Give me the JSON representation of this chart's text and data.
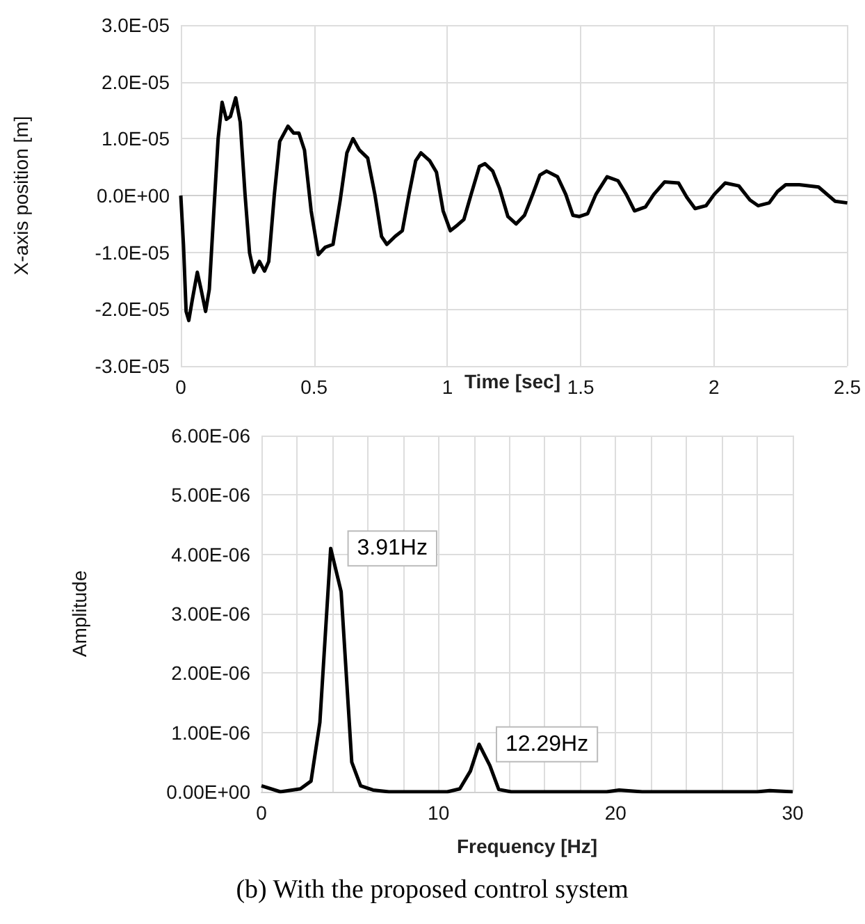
{
  "chart_data": [
    {
      "type": "line",
      "xlabel": "Time [sec]",
      "ylabel": "X-axis position [m]",
      "color": "#000000",
      "grid": true,
      "x": [
        0,
        0.01,
        0.02,
        0.03,
        0.043,
        0.062,
        0.076,
        0.093,
        0.107,
        0.124,
        0.14,
        0.155,
        0.171,
        0.186,
        0.206,
        0.223,
        0.241,
        0.258,
        0.274,
        0.295,
        0.314,
        0.33,
        0.351,
        0.371,
        0.402,
        0.423,
        0.443,
        0.464,
        0.489,
        0.516,
        0.542,
        0.571,
        0.598,
        0.623,
        0.646,
        0.67,
        0.701,
        0.728,
        0.753,
        0.773,
        0.804,
        0.831,
        0.856,
        0.881,
        0.901,
        0.934,
        0.959,
        0.984,
        1.011,
        1.038,
        1.062,
        1.089,
        1.12,
        1.141,
        1.17,
        1.196,
        1.227,
        1.258,
        1.289,
        1.32,
        1.347,
        1.372,
        1.413,
        1.444,
        1.471,
        1.495,
        1.526,
        1.557,
        1.599,
        1.64,
        1.671,
        1.702,
        1.743,
        1.774,
        1.815,
        1.867,
        1.898,
        1.929,
        1.97,
        2.001,
        2.042,
        2.093,
        2.135,
        2.166,
        2.207,
        2.238,
        2.269,
        2.32,
        2.392,
        2.454,
        2.5
      ],
      "values": [
        0,
        -8.6e-06,
        -2.04e-05,
        -2.2e-05,
        -1.84e-05,
        -1.35e-05,
        -1.65e-05,
        -2.04e-05,
        -1.65e-05,
        -2.7e-06,
        1e-05,
        1.64e-05,
        1.34e-05,
        1.39e-05,
        1.72e-05,
        1.29e-05,
        2e-07,
        -1.01e-05,
        -1.35e-05,
        -1.16e-05,
        -1.33e-05,
        -1.16e-05,
        2e-07,
        9.5e-06,
        1.22e-05,
        1.1e-05,
        1.1e-05,
        8e-06,
        -2.7e-06,
        -1.04e-05,
        -9.1e-06,
        -8.6e-06,
        -8e-07,
        7.5e-06,
        1e-05,
        8e-06,
        6.6e-06,
        2e-07,
        -7.2e-06,
        -8.6e-06,
        -7.2e-06,
        -6.2e-06,
        2e-07,
        6.1e-06,
        7.5e-06,
        6.1e-06,
        4.1e-06,
        -2.7e-06,
        -6.2e-06,
        -5.2e-06,
        -4.2e-06,
        2e-07,
        5.1e-06,
        5.6e-06,
        4.3e-06,
        1.2e-06,
        -3.7e-06,
        -5e-06,
        -3.5e-06,
        2e-07,
        3.6e-06,
        4.3e-06,
        3.3e-06,
        2e-07,
        -3.5e-06,
        -3.7e-06,
        -3.2e-06,
        2e-07,
        3.3e-06,
        2.6e-06,
        2e-07,
        -2.7e-06,
        -2e-06,
        2e-07,
        2.4e-06,
        2.2e-06,
        -3e-07,
        -2.3e-06,
        -1.8e-06,
        2e-07,
        2.2e-06,
        1.7e-06,
        -8e-07,
        -1.8e-06,
        -1.3e-06,
        7e-07,
        1.9e-06,
        1.9e-06,
        1.5e-06,
        -1e-06,
        -1.3e-06
      ],
      "xlim": [
        0,
        2.5
      ],
      "xticks": [
        0,
        0.5,
        1,
        1.5,
        2,
        2.5
      ],
      "ylim": [
        -3e-05,
        3e-05
      ],
      "yticks": [
        {
          "value": -3e-05,
          "label": "-3.0E-05"
        },
        {
          "value": -2e-05,
          "label": "-2.0E-05"
        },
        {
          "value": -1e-05,
          "label": "-1.0E-05"
        },
        {
          "value": 0,
          "label": "0.0E+00"
        },
        {
          "value": 1e-05,
          "label": "1.0E-05"
        },
        {
          "value": 2e-05,
          "label": "2.0E-05"
        },
        {
          "value": 3e-05,
          "label": "3.0E-05"
        }
      ]
    },
    {
      "type": "line",
      "xlabel": "Frequency [Hz]",
      "ylabel": "Amplitude",
      "color": "#000000",
      "grid": true,
      "x": [
        0,
        1.07,
        2.2,
        2.8,
        3.3,
        3.91,
        4.5,
        5.1,
        5.6,
        6.3,
        7.2,
        10.5,
        11.2,
        11.8,
        12.29,
        12.9,
        13.4,
        14.1,
        19.5,
        20.2,
        21.5,
        28,
        28.7,
        30
      ],
      "values": [
        1e-07,
        0,
        5e-08,
        1.8e-07,
        1.17e-06,
        4.1e-06,
        3.37e-06,
        5e-07,
        1e-07,
        3e-08,
        0,
        0,
        5e-08,
        3.5e-07,
        8e-07,
        4.4e-07,
        4e-08,
        0,
        0,
        3e-08,
        0,
        0,
        2e-08,
        0
      ],
      "xlim": [
        0,
        30
      ],
      "xticks": [
        0,
        {
          "value": 2,
          "label": null
        },
        {
          "value": 4,
          "label": null
        },
        {
          "value": 6,
          "label": null
        },
        {
          "value": 8,
          "label": null
        },
        10,
        {
          "value": 12,
          "label": null
        },
        {
          "value": 14,
          "label": null
        },
        {
          "value": 16,
          "label": null
        },
        {
          "value": 18,
          "label": null
        },
        20,
        {
          "value": 22,
          "label": null
        },
        {
          "value": 24,
          "label": null
        },
        {
          "value": 26,
          "label": null
        },
        {
          "value": 28,
          "label": null
        },
        30
      ],
      "ylim": [
        0,
        6e-06
      ],
      "yticks": [
        {
          "value": 0,
          "label": "0.00E+00"
        },
        {
          "value": 1e-06,
          "label": "1.00E-06"
        },
        {
          "value": 2e-06,
          "label": "2.00E-06"
        },
        {
          "value": 3e-06,
          "label": "3.00E-06"
        },
        {
          "value": 4e-06,
          "label": "4.00E-06"
        },
        {
          "value": 5e-06,
          "label": "5.00E-06"
        },
        {
          "value": 6e-06,
          "label": "6.00E-06"
        }
      ],
      "annotations": [
        {
          "text": "3.91Hz",
          "x": 3.91,
          "y": 4.1e-06
        },
        {
          "text": "12.29Hz",
          "x": 12.29,
          "y": 8e-07
        },
        "(b) With the proposed control system"
      ]
    }
  ]
}
